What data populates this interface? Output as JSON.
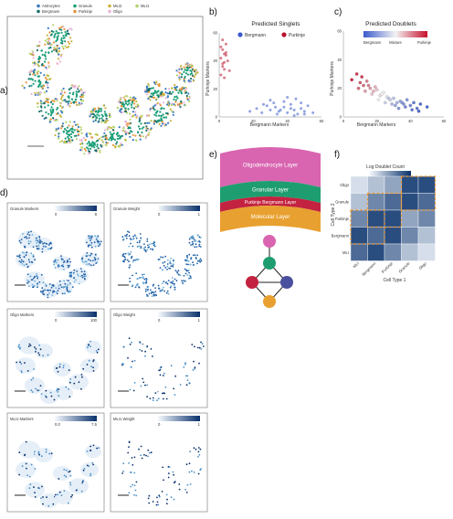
{
  "panel_labels": [
    "a)",
    "b)",
    "c)",
    "d)",
    "e)",
    "f)"
  ],
  "colors": {
    "astrocytes": "#3b7bbf",
    "granule": "#1a9e77",
    "mli2": "#c9b43c",
    "mli1": "#b3d46b",
    "bergmann": "#1b6f6b",
    "purkinje": "#e8943a",
    "oligo": "#e8b4d8",
    "singlet_bergmann": "#3b5bcc",
    "singlet_purkinje": "#b8152e",
    "blue_dark": "#08306b",
    "blue_light": "#deebf7"
  },
  "panel_a": {
    "legend": [
      {
        "name": "Astrocytes",
        "color": "#3b7bbf"
      },
      {
        "name": "Granule",
        "color": "#1a9e77"
      },
      {
        "name": "MLI2",
        "color": "#c9b43c"
      },
      {
        "name": "MLI1",
        "color": "#b3d46b"
      },
      {
        "name": "Bergmann",
        "color": "#1b6f6b"
      },
      {
        "name": "Purkinje",
        "color": "#e8943a"
      },
      {
        "name": "Oligo",
        "color": "#e8b4d8"
      }
    ]
  },
  "chart_data": [
    {
      "panel": "b",
      "type": "scatter",
      "title": "Predicted Singlets",
      "xlabel": "Bergmann Markers",
      "ylabel": "Purkinje Markers",
      "xlim": [
        0,
        60
      ],
      "ylim": [
        0,
        60
      ],
      "xticks": [
        "0",
        "20",
        "40",
        "60"
      ],
      "yticks": [
        "0",
        "20",
        "40",
        "60"
      ],
      "legend": [
        "Bergmann",
        "Purkinje"
      ],
      "series": [
        {
          "name": "Bergmann",
          "color": "#3b5bcc",
          "x": [
            18,
            22,
            25,
            28,
            30,
            32,
            35,
            38,
            40,
            42,
            44,
            46,
            48,
            50,
            52,
            55,
            30,
            34,
            38,
            42,
            26,
            40,
            44,
            48,
            36,
            33,
            45,
            50
          ],
          "y": [
            4,
            6,
            3,
            8,
            5,
            10,
            4,
            7,
            3,
            9,
            5,
            2,
            6,
            4,
            8,
            3,
            12,
            2,
            11,
            6,
            9,
            14,
            1,
            10,
            5,
            7,
            13,
            2
          ]
        },
        {
          "name": "Purkinje",
          "color": "#b8152e",
          "x": [
            1,
            2,
            3,
            4,
            2,
            1,
            3,
            5,
            2,
            4,
            1,
            3,
            2,
            6,
            4,
            3
          ],
          "y": [
            30,
            38,
            45,
            52,
            48,
            42,
            34,
            40,
            36,
            46,
            50,
            28,
            55,
            33,
            44,
            39
          ]
        }
      ]
    },
    {
      "panel": "c",
      "type": "scatter",
      "title": "Predicted Doublets",
      "xlabel": "Bergmann Markers",
      "ylabel": "Purkinje Markers",
      "xlim": [
        0,
        60
      ],
      "ylim": [
        0,
        60
      ],
      "xticks": [
        "0",
        "20",
        "40",
        "60"
      ],
      "yticks": [
        "0",
        "20",
        "40",
        "60"
      ],
      "colorbar": {
        "labels": [
          "Bergmann",
          "Mixture",
          "Purkinje"
        ]
      },
      "points": {
        "x": [
          5,
          8,
          10,
          12,
          14,
          16,
          18,
          20,
          22,
          24,
          26,
          28,
          30,
          32,
          34,
          36,
          38,
          40,
          42,
          44,
          46,
          50,
          9,
          13,
          17,
          21,
          25,
          29,
          33,
          37,
          41,
          45,
          11,
          15,
          19,
          23,
          27,
          31,
          35
        ],
        "y": [
          26,
          30,
          24,
          22,
          25,
          20,
          18,
          19,
          15,
          17,
          14,
          12,
          13,
          10,
          11,
          9,
          12,
          8,
          10,
          6,
          9,
          7,
          20,
          18,
          16,
          12,
          10,
          9,
          6,
          7,
          5,
          4,
          28,
          22,
          21,
          16,
          13,
          8,
          10
        ],
        "mix": [
          0.95,
          0.9,
          0.85,
          0.8,
          0.75,
          0.7,
          0.65,
          0.6,
          0.55,
          0.5,
          0.45,
          0.4,
          0.35,
          0.3,
          0.25,
          0.2,
          0.2,
          0.15,
          0.1,
          0.1,
          0.05,
          0.05,
          0.8,
          0.7,
          0.6,
          0.5,
          0.4,
          0.3,
          0.2,
          0.15,
          0.1,
          0.05,
          0.9,
          0.75,
          0.65,
          0.5,
          0.35,
          0.25,
          0.2
        ]
      }
    },
    {
      "panel": "f",
      "type": "heatmap",
      "xlabel": "Cell Type 1",
      "ylabel": "Cell Type 2",
      "colorbar_title": "Log Doublet Count",
      "colorbar_ticks": [
        "1",
        "8"
      ],
      "rows": [
        "Oligo",
        "Granule",
        "Purkinje",
        "Bergmann",
        "MLI"
      ],
      "cols": [
        "MLI",
        "Bergmann",
        "Purkinje",
        "Granule",
        "Oligo"
      ],
      "values": [
        [
          2,
          3,
          4,
          7,
          7
        ],
        [
          3,
          5,
          6,
          7,
          6
        ],
        [
          5,
          7,
          7,
          4,
          5
        ],
        [
          7,
          6,
          7,
          5,
          3
        ],
        [
          6,
          7,
          5,
          3,
          2
        ]
      ]
    }
  ],
  "panel_d": {
    "maps": [
      {
        "title": "Granule Markers",
        "ticks": [
          "0",
          "8"
        ]
      },
      {
        "title": "Granule Weight",
        "ticks": [
          "0",
          "1"
        ]
      },
      {
        "title": "Oligo Markers",
        "ticks": [
          "0",
          "100"
        ]
      },
      {
        "title": "Oligo Weight",
        "ticks": [
          "0",
          "1"
        ]
      },
      {
        "title": "MLI1 Markers",
        "ticks": [
          "0.0",
          "7.5"
        ]
      },
      {
        "title": "MLI1 Weight",
        "ticks": [
          "0",
          "1"
        ]
      }
    ]
  },
  "panel_e": {
    "layers": [
      {
        "label": "Oligodendrocyte Layer",
        "color": "#d964b0"
      },
      {
        "label": "Granular Layer",
        "color": "#1e9e70"
      },
      {
        "label": "Purkinje Bergmann Layer",
        "color": "#c32240"
      },
      {
        "label": "Molecular Layer",
        "color": "#e8a030"
      }
    ],
    "graph_nodes": [
      {
        "name": "oligo",
        "color": "#d964b0"
      },
      {
        "name": "granule",
        "color": "#1e9e70"
      },
      {
        "name": "purkinje",
        "color": "#c32240"
      },
      {
        "name": "bergmann",
        "color": "#4a4f9e"
      },
      {
        "name": "molecular",
        "color": "#e8a030"
      }
    ]
  }
}
